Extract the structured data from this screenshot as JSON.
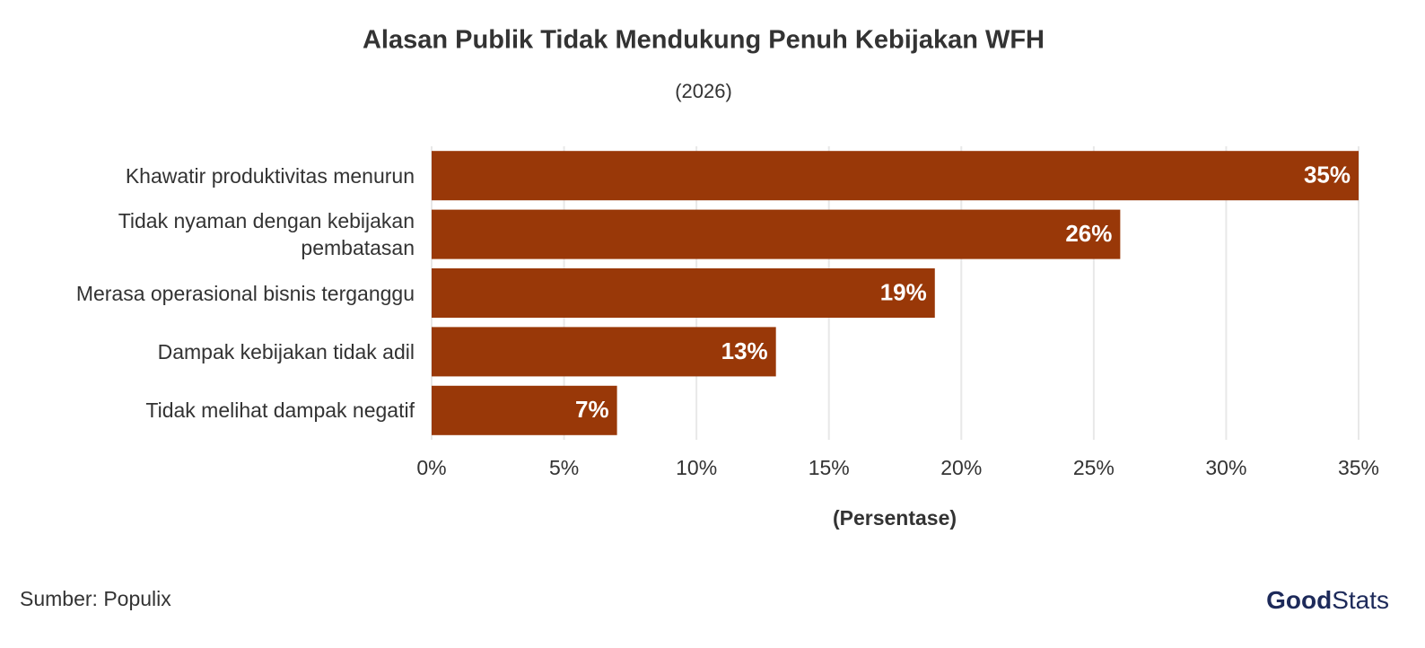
{
  "chart_data": {
    "type": "bar",
    "orientation": "horizontal",
    "title": "Alasan Publik Tidak Mendukung Penuh Kebijakan WFH",
    "subtitle": "(2026)",
    "xlabel": "(Persentase)",
    "categories": [
      "Khawatir produktivitas menurun",
      "Tidak nyaman dengan kebijakan pembatasan",
      "Merasa operasional bisnis terganggu",
      "Dampak kebijakan tidak adil",
      "Tidak melihat dampak negatif"
    ],
    "values": [
      35,
      26,
      19,
      13,
      7
    ],
    "value_labels": [
      "35%",
      "26%",
      "19%",
      "13%",
      "7%"
    ],
    "color": "#993808",
    "xlim": [
      0,
      35
    ],
    "xticks": [
      {
        "value": 0,
        "label": "0%"
      },
      {
        "value": 5,
        "label": "5%"
      },
      {
        "value": 10,
        "label": "10%"
      },
      {
        "value": 15,
        "label": "15%"
      },
      {
        "value": 20,
        "label": "20%"
      },
      {
        "value": 25,
        "label": "25%"
      },
      {
        "value": 30,
        "label": "30%"
      },
      {
        "value": 35,
        "label": "35%"
      }
    ],
    "grid": true,
    "source": "Sumber: Populix",
    "brand": {
      "first": "Good",
      "second": "Stats"
    }
  }
}
